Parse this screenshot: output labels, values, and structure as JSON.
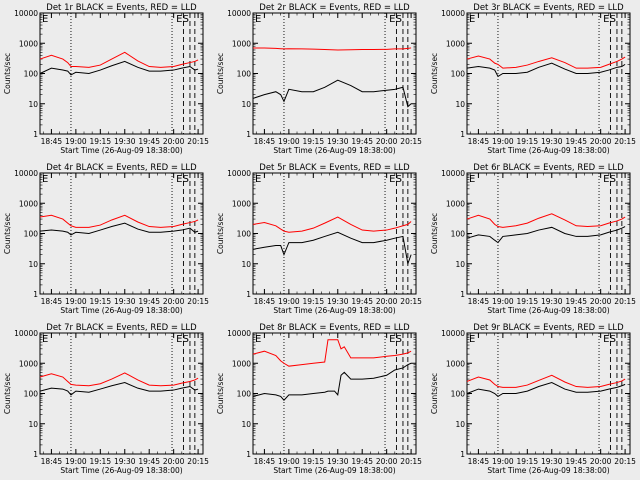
{
  "window_title": "",
  "colors": {
    "background": "#ececec",
    "events": "#000000",
    "lld": "#ff0000",
    "axes": "#000000"
  },
  "chart_data": [
    {
      "type": "line",
      "title": "Det 1r BLACK = Events, RED = LLD",
      "xlabel": "Start Time (26-Aug-09 18:38:00)",
      "ylabel": "Counts/sec",
      "scale_y": "log",
      "ylim": [
        1,
        10000
      ],
      "y_ticks": [
        "1",
        "10",
        "100",
        "1000",
        "10000"
      ],
      "xlim": [
        "18:38",
        "20:18"
      ],
      "x_ticks": [
        "18:45",
        "19:00",
        "19:15",
        "19:30",
        "19:45",
        "20:00",
        "20:15"
      ],
      "x": [
        "18:38",
        "18:45",
        "18:52",
        "18:55",
        "18:57",
        "19:00",
        "19:08",
        "19:15",
        "19:22",
        "19:30",
        "19:38",
        "19:45",
        "19:52",
        "20:00",
        "20:05",
        "20:10",
        "20:13",
        "20:15"
      ],
      "series": [
        {
          "name": "Events",
          "values": [
            100,
            150,
            130,
            120,
            90,
            110,
            100,
            130,
            180,
            250,
            160,
            120,
            120,
            130,
            150,
            170,
            130,
            140
          ]
        },
        {
          "name": "LLD",
          "values": [
            300,
            400,
            300,
            230,
            170,
            170,
            160,
            190,
            300,
            500,
            260,
            170,
            160,
            170,
            200,
            230,
            250,
            280
          ]
        }
      ],
      "annotations": [
        {
          "type": "dotted-vline",
          "x": "18:57"
        },
        {
          "type": "dotted-vline",
          "x": "19:59"
        },
        {
          "type": "dashed-vline",
          "x": "20:06",
          "label": "E"
        },
        {
          "type": "dashed-vline",
          "x": "20:10",
          "label": "S"
        },
        {
          "type": "dashed-vline",
          "x": "20:13"
        }
      ],
      "corner_label": "E"
    },
    {
      "type": "line",
      "title": "Det 2r BLACK = Events, RED = LLD",
      "xlabel": "Start Time (26-Aug-09 18:38:00)",
      "ylabel": "Counts/sec",
      "scale_y": "log",
      "ylim": [
        1,
        10000
      ],
      "y_ticks": [
        "1",
        "10",
        "100",
        "1000",
        "10000"
      ],
      "xlim": [
        "18:38",
        "20:18"
      ],
      "x_ticks": [
        "18:45",
        "19:00",
        "19:15",
        "19:30",
        "19:45",
        "20:00",
        "20:15"
      ],
      "x": [
        "18:38",
        "18:45",
        "18:52",
        "18:55",
        "18:57",
        "19:00",
        "19:08",
        "19:15",
        "19:22",
        "19:30",
        "19:38",
        "19:45",
        "19:52",
        "20:00",
        "20:05",
        "20:10",
        "20:13",
        "20:15"
      ],
      "series": [
        {
          "name": "Events",
          "values": [
            15,
            20,
            25,
            20,
            12,
            30,
            25,
            25,
            35,
            60,
            40,
            25,
            25,
            28,
            30,
            35,
            8,
            10
          ]
        },
        {
          "name": "LLD",
          "values": [
            700,
            700,
            680,
            660,
            650,
            660,
            650,
            640,
            620,
            600,
            610,
            620,
            620,
            630,
            650,
            650,
            680,
            700
          ]
        }
      ],
      "annotations": [
        {
          "type": "dotted-vline",
          "x": "18:57"
        },
        {
          "type": "dotted-vline",
          "x": "19:59"
        },
        {
          "type": "dashed-vline",
          "x": "20:06",
          "label": "E"
        },
        {
          "type": "dashed-vline",
          "x": "20:10",
          "label": "S"
        },
        {
          "type": "dashed-vline",
          "x": "20:13"
        }
      ],
      "corner_label": "E"
    },
    {
      "type": "line",
      "title": "Det 3r BLACK = Events, RED = LLD",
      "xlabel": "Start Time (26-Aug-09 18:38:00)",
      "ylabel": "Counts/sec",
      "scale_y": "log",
      "ylim": [
        1,
        10000
      ],
      "y_ticks": [
        "1",
        "10",
        "100",
        "1000",
        "10000"
      ],
      "xlim": [
        "18:38",
        "20:18"
      ],
      "x_ticks": [
        "18:45",
        "19:00",
        "19:15",
        "19:30",
        "19:45",
        "20:00",
        "20:15"
      ],
      "x": [
        "18:38",
        "18:45",
        "18:52",
        "18:55",
        "18:57",
        "19:00",
        "19:08",
        "19:15",
        "19:22",
        "19:30",
        "19:38",
        "19:45",
        "19:52",
        "20:00",
        "20:05",
        "20:10",
        "20:13",
        "20:15"
      ],
      "series": [
        {
          "name": "Events",
          "values": [
            150,
            170,
            150,
            130,
            80,
            100,
            100,
            110,
            160,
            220,
            140,
            100,
            100,
            110,
            130,
            160,
            170,
            200
          ]
        },
        {
          "name": "LLD",
          "values": [
            300,
            380,
            300,
            220,
            200,
            150,
            160,
            190,
            250,
            330,
            230,
            150,
            150,
            160,
            200,
            250,
            300,
            350
          ]
        }
      ],
      "annotations": [
        {
          "type": "dotted-vline",
          "x": "18:57"
        },
        {
          "type": "dotted-vline",
          "x": "19:59"
        },
        {
          "type": "dashed-vline",
          "x": "20:06",
          "label": "E"
        },
        {
          "type": "dashed-vline",
          "x": "20:10",
          "label": "S"
        },
        {
          "type": "dashed-vline",
          "x": "20:13"
        }
      ],
      "corner_label": "E"
    },
    {
      "type": "line",
      "title": "Det 4r BLACK = Events, RED = LLD",
      "xlabel": "Start Time (26-Aug-09 18:38:00)",
      "ylabel": "Counts/sec",
      "scale_y": "log",
      "ylim": [
        1,
        10000
      ],
      "y_ticks": [
        "1",
        "10",
        "100",
        "1000",
        "10000"
      ],
      "xlim": [
        "18:38",
        "20:18"
      ],
      "x_ticks": [
        "18:45",
        "19:00",
        "19:15",
        "19:30",
        "19:45",
        "20:00",
        "20:15"
      ],
      "x": [
        "18:38",
        "18:45",
        "18:52",
        "18:55",
        "18:57",
        "19:00",
        "19:08",
        "19:15",
        "19:22",
        "19:30",
        "19:38",
        "19:45",
        "19:52",
        "20:00",
        "20:05",
        "20:10",
        "20:13",
        "20:15"
      ],
      "series": [
        {
          "name": "Events",
          "values": [
            120,
            130,
            120,
            110,
            90,
            110,
            100,
            130,
            170,
            220,
            140,
            110,
            110,
            120,
            130,
            150,
            110,
            120
          ]
        },
        {
          "name": "LLD",
          "values": [
            350,
            400,
            300,
            220,
            180,
            160,
            160,
            190,
            280,
            400,
            240,
            170,
            160,
            170,
            200,
            230,
            250,
            280
          ]
        }
      ],
      "annotations": [
        {
          "type": "dotted-vline",
          "x": "18:57"
        },
        {
          "type": "dotted-vline",
          "x": "19:59"
        },
        {
          "type": "dashed-vline",
          "x": "20:06",
          "label": "E"
        },
        {
          "type": "dashed-vline",
          "x": "20:10",
          "label": "S"
        },
        {
          "type": "dashed-vline",
          "x": "20:13"
        }
      ],
      "corner_label": "E"
    },
    {
      "type": "line",
      "title": "Det 5r BLACK = Events, RED = LLD",
      "xlabel": "Start Time (26-Aug-09 18:38:00)",
      "ylabel": "Counts/sec",
      "scale_y": "log",
      "ylim": [
        1,
        10000
      ],
      "y_ticks": [
        "1",
        "10",
        "100",
        "1000",
        "10000"
      ],
      "xlim": [
        "18:38",
        "20:18"
      ],
      "x_ticks": [
        "18:45",
        "19:00",
        "19:15",
        "19:30",
        "19:45",
        "20:00",
        "20:15"
      ],
      "x": [
        "18:38",
        "18:45",
        "18:52",
        "18:55",
        "18:57",
        "19:00",
        "19:08",
        "19:15",
        "19:22",
        "19:30",
        "19:38",
        "19:45",
        "19:52",
        "20:00",
        "20:05",
        "20:10",
        "20:13",
        "20:15"
      ],
      "series": [
        {
          "name": "Events",
          "values": [
            30,
            35,
            40,
            40,
            20,
            50,
            50,
            60,
            80,
            110,
            70,
            50,
            50,
            60,
            70,
            80,
            10,
            20
          ]
        },
        {
          "name": "LLD",
          "values": [
            200,
            230,
            180,
            140,
            120,
            110,
            120,
            150,
            220,
            350,
            200,
            130,
            120,
            130,
            150,
            180,
            200,
            250
          ]
        }
      ],
      "annotations": [
        {
          "type": "dotted-vline",
          "x": "18:57"
        },
        {
          "type": "dotted-vline",
          "x": "19:59"
        },
        {
          "type": "dashed-vline",
          "x": "20:06",
          "label": "E"
        },
        {
          "type": "dashed-vline",
          "x": "20:10",
          "label": "S"
        },
        {
          "type": "dashed-vline",
          "x": "20:13"
        }
      ],
      "corner_label": "E"
    },
    {
      "type": "line",
      "title": "Det 6r BLACK = Events, RED = LLD",
      "xlabel": "Start Time (26-Aug-09 18:38:00)",
      "ylabel": "Counts/sec",
      "scale_y": "log",
      "ylim": [
        1,
        10000
      ],
      "y_ticks": [
        "1",
        "10",
        "100",
        "1000",
        "10000"
      ],
      "xlim": [
        "18:38",
        "20:18"
      ],
      "x_ticks": [
        "18:45",
        "19:00",
        "19:15",
        "19:30",
        "19:45",
        "20:00",
        "20:15"
      ],
      "x": [
        "18:38",
        "18:45",
        "18:52",
        "18:55",
        "18:57",
        "19:00",
        "19:08",
        "19:15",
        "19:22",
        "19:30",
        "19:38",
        "19:45",
        "19:52",
        "20:00",
        "20:05",
        "20:10",
        "20:13",
        "20:15"
      ],
      "series": [
        {
          "name": "Events",
          "values": [
            70,
            90,
            80,
            60,
            50,
            80,
            90,
            100,
            130,
            160,
            100,
            80,
            80,
            90,
            110,
            130,
            150,
            170
          ]
        },
        {
          "name": "LLD",
          "values": [
            300,
            400,
            300,
            200,
            170,
            160,
            180,
            220,
            320,
            450,
            280,
            180,
            170,
            180,
            220,
            260,
            300,
            350
          ]
        }
      ],
      "annotations": [
        {
          "type": "dotted-vline",
          "x": "18:57"
        },
        {
          "type": "dotted-vline",
          "x": "19:59"
        },
        {
          "type": "dashed-vline",
          "x": "20:06",
          "label": "E"
        },
        {
          "type": "dashed-vline",
          "x": "20:10",
          "label": "S"
        },
        {
          "type": "dashed-vline",
          "x": "20:13"
        }
      ],
      "corner_label": "E"
    },
    {
      "type": "line",
      "title": "Det 7r BLACK = Events, RED = LLD",
      "xlabel": "Start Time (26-Aug-09 18:38:00)",
      "ylabel": "Counts/sec",
      "scale_y": "log",
      "ylim": [
        1,
        10000
      ],
      "y_ticks": [
        "1",
        "10",
        "100",
        "1000",
        "10000"
      ],
      "xlim": [
        "18:38",
        "20:18"
      ],
      "x_ticks": [
        "18:45",
        "19:00",
        "19:15",
        "19:30",
        "19:45",
        "20:00",
        "20:15"
      ],
      "x": [
        "18:38",
        "18:45",
        "18:52",
        "18:55",
        "18:57",
        "19:00",
        "19:08",
        "19:15",
        "19:22",
        "19:30",
        "19:38",
        "19:45",
        "19:52",
        "20:00",
        "20:05",
        "20:10",
        "20:13",
        "20:15"
      ],
      "series": [
        {
          "name": "Events",
          "values": [
            120,
            150,
            140,
            120,
            90,
            120,
            110,
            140,
            180,
            230,
            150,
            120,
            120,
            130,
            150,
            170,
            130,
            140
          ]
        },
        {
          "name": "LLD",
          "values": [
            350,
            450,
            350,
            250,
            200,
            190,
            180,
            210,
            300,
            480,
            280,
            190,
            180,
            190,
            220,
            250,
            280,
            320
          ]
        }
      ],
      "annotations": [
        {
          "type": "dotted-vline",
          "x": "18:57"
        },
        {
          "type": "dotted-vline",
          "x": "19:59"
        },
        {
          "type": "dashed-vline",
          "x": "20:06",
          "label": "E"
        },
        {
          "type": "dashed-vline",
          "x": "20:10",
          "label": "S"
        },
        {
          "type": "dashed-vline",
          "x": "20:13"
        }
      ],
      "corner_label": "E"
    },
    {
      "type": "line",
      "title": "Det 8r BLACK = Events, RED = LLD",
      "xlabel": "Start Time (26-Aug-09 18:38:00)",
      "ylabel": "Counts/sec",
      "scale_y": "log",
      "ylim": [
        1,
        10000
      ],
      "y_ticks": [
        "1",
        "10",
        "100",
        "1000",
        "10000"
      ],
      "xlim": [
        "18:38",
        "20:18"
      ],
      "x_ticks": [
        "18:45",
        "19:00",
        "19:15",
        "19:30",
        "19:45",
        "20:00",
        "20:15"
      ],
      "x": [
        "18:38",
        "18:45",
        "18:52",
        "18:55",
        "18:57",
        "19:00",
        "19:08",
        "19:15",
        "19:22",
        "19:24",
        "19:28",
        "19:30",
        "19:32",
        "19:34",
        "19:38",
        "19:45",
        "19:52",
        "20:00",
        "20:05",
        "20:10",
        "20:13",
        "20:15"
      ],
      "series": [
        {
          "name": "Events",
          "values": [
            80,
            100,
            90,
            80,
            60,
            90,
            90,
            100,
            110,
            120,
            120,
            90,
            400,
            500,
            300,
            300,
            320,
            400,
            600,
            700,
            900,
            1000
          ]
        },
        {
          "name": "LLD",
          "values": [
            2000,
            2500,
            1800,
            1200,
            1000,
            800,
            900,
            1000,
            1100,
            6000,
            6000,
            6000,
            3000,
            3500,
            1500,
            1500,
            1500,
            1700,
            1800,
            2000,
            2200,
            2500
          ]
        }
      ],
      "annotations": [
        {
          "type": "dotted-vline",
          "x": "18:57"
        },
        {
          "type": "dotted-vline",
          "x": "19:59"
        },
        {
          "type": "dashed-vline",
          "x": "20:06",
          "label": "E"
        },
        {
          "type": "dashed-vline",
          "x": "20:10",
          "label": "S"
        },
        {
          "type": "dashed-vline",
          "x": "20:13"
        }
      ],
      "corner_label": "E"
    },
    {
      "type": "line",
      "title": "Det 9r BLACK = Events, RED = LLD",
      "xlabel": "Start Time (26-Aug-09 18:38:00)",
      "ylabel": "Counts/sec",
      "scale_y": "log",
      "ylim": [
        1,
        10000
      ],
      "y_ticks": [
        "1",
        "10",
        "100",
        "1000",
        "10000"
      ],
      "xlim": [
        "18:38",
        "20:18"
      ],
      "x_ticks": [
        "18:45",
        "19:00",
        "19:15",
        "19:30",
        "19:45",
        "20:00",
        "20:15"
      ],
      "x": [
        "18:38",
        "18:45",
        "18:52",
        "18:55",
        "18:57",
        "19:00",
        "19:08",
        "19:15",
        "19:22",
        "19:30",
        "19:38",
        "19:45",
        "19:52",
        "20:00",
        "20:05",
        "20:10",
        "20:13",
        "20:15"
      ],
      "series": [
        {
          "name": "Events",
          "values": [
            100,
            140,
            120,
            100,
            80,
            100,
            100,
            120,
            170,
            230,
            140,
            110,
            110,
            120,
            140,
            160,
            180,
            200
          ]
        },
        {
          "name": "LLD",
          "values": [
            250,
            350,
            280,
            200,
            170,
            160,
            160,
            190,
            270,
            400,
            240,
            170,
            160,
            170,
            200,
            230,
            260,
            300
          ]
        }
      ],
      "annotations": [
        {
          "type": "dotted-vline",
          "x": "18:57"
        },
        {
          "type": "dotted-vline",
          "x": "19:59"
        },
        {
          "type": "dashed-vline",
          "x": "20:06",
          "label": "E"
        },
        {
          "type": "dashed-vline",
          "x": "20:10",
          "label": "S"
        },
        {
          "type": "dashed-vline",
          "x": "20:13"
        }
      ],
      "corner_label": "E"
    }
  ]
}
